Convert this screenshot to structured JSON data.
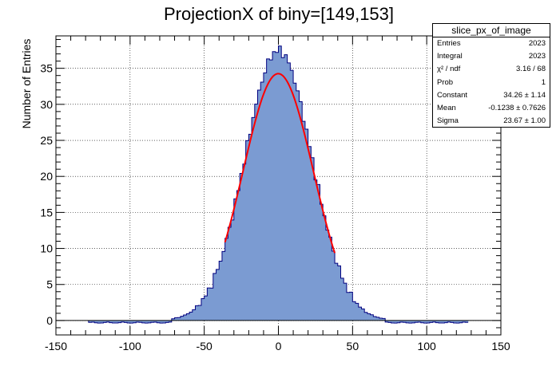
{
  "chart_data": {
    "type": "histogram",
    "title": "ProjectionX of biny=[149,153]",
    "xlabel": "",
    "ylabel": "Number of Entries",
    "xlim": [
      -150,
      150
    ],
    "ylim": [
      -2,
      39.5
    ],
    "x_ticks": [
      "-150",
      "-100",
      "-50",
      "0",
      "50",
      "100",
      "150"
    ],
    "y_ticks": [
      "0",
      "5",
      "10",
      "15",
      "20",
      "25",
      "30",
      "35"
    ],
    "grid": true,
    "fill_color": "#7b9bd2",
    "line_color": "#00007f",
    "fit_color": "#ff0000",
    "histogram": {
      "bin_width": 2,
      "x_range": [
        -128,
        128
      ],
      "peak_value": 37.5,
      "peak_x": 0,
      "shape": "gaussian-like, tails near zero, slightly negative beyond |x|>70"
    },
    "fit": {
      "function": "gaus",
      "constant": 34.26,
      "mean": -0.1238,
      "sigma": 23.67,
      "x_range": [
        -36,
        38
      ]
    }
  },
  "stats": {
    "name": "slice_px_of_image",
    "rows": [
      {
        "label": "Entries",
        "value": "2023"
      },
      {
        "label": "Integral",
        "value": "2023"
      },
      {
        "label": "χ² / ndf",
        "value": "3.16 / 68"
      },
      {
        "label": "Prob",
        "value": "1"
      },
      {
        "label": "Constant",
        "value": "34.26 ± 1.14"
      },
      {
        "label": "Mean",
        "value": "-0.1238 ± 0.7626"
      },
      {
        "label": "Sigma",
        "value": "23.67 ± 1.00"
      }
    ]
  }
}
